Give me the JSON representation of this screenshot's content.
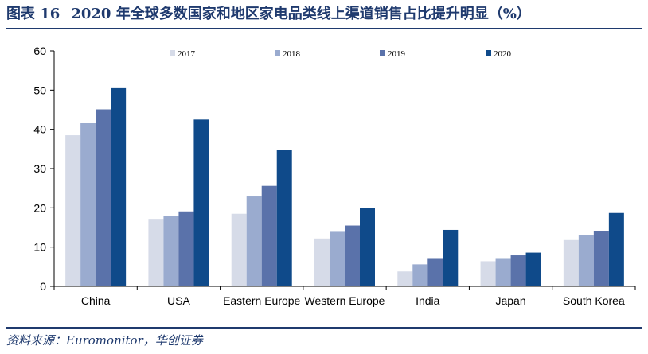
{
  "header": {
    "figure_no": "图表 16",
    "title": "2020 年全球多数国家和地区家电品类线上渠道销售占比提升明显（%）"
  },
  "footer": {
    "source": "资料来源：Euromonitor，华创证券"
  },
  "chart_data": {
    "type": "bar",
    "title": "2020 年全球多数国家和地区家电品类线上渠道销售占比提升明显（%）",
    "xlabel": "",
    "ylabel": "",
    "ylim": [
      0,
      60
    ],
    "yticks": [
      0,
      10,
      20,
      30,
      40,
      50,
      60
    ],
    "grid": false,
    "legend_position": "top",
    "categories": [
      "China",
      "USA",
      "Eastern Europe",
      "Western Europe",
      "India",
      "Japan",
      "South Korea"
    ],
    "series": [
      {
        "name": "2017",
        "color": "#d6dbe8",
        "values": [
          38.5,
          17.2,
          18.5,
          12.2,
          3.8,
          6.4,
          11.8
        ]
      },
      {
        "name": "2018",
        "color": "#9aabcf",
        "values": [
          41.7,
          17.9,
          22.9,
          13.9,
          5.6,
          7.2,
          13.1
        ]
      },
      {
        "name": "2019",
        "color": "#5a72aa",
        "values": [
          45.1,
          19.1,
          25.6,
          15.5,
          7.2,
          7.9,
          14.1
        ]
      },
      {
        "name": "2020",
        "color": "#0f4a8a",
        "values": [
          50.7,
          42.5,
          34.8,
          19.9,
          14.4,
          8.6,
          18.7
        ]
      }
    ]
  }
}
